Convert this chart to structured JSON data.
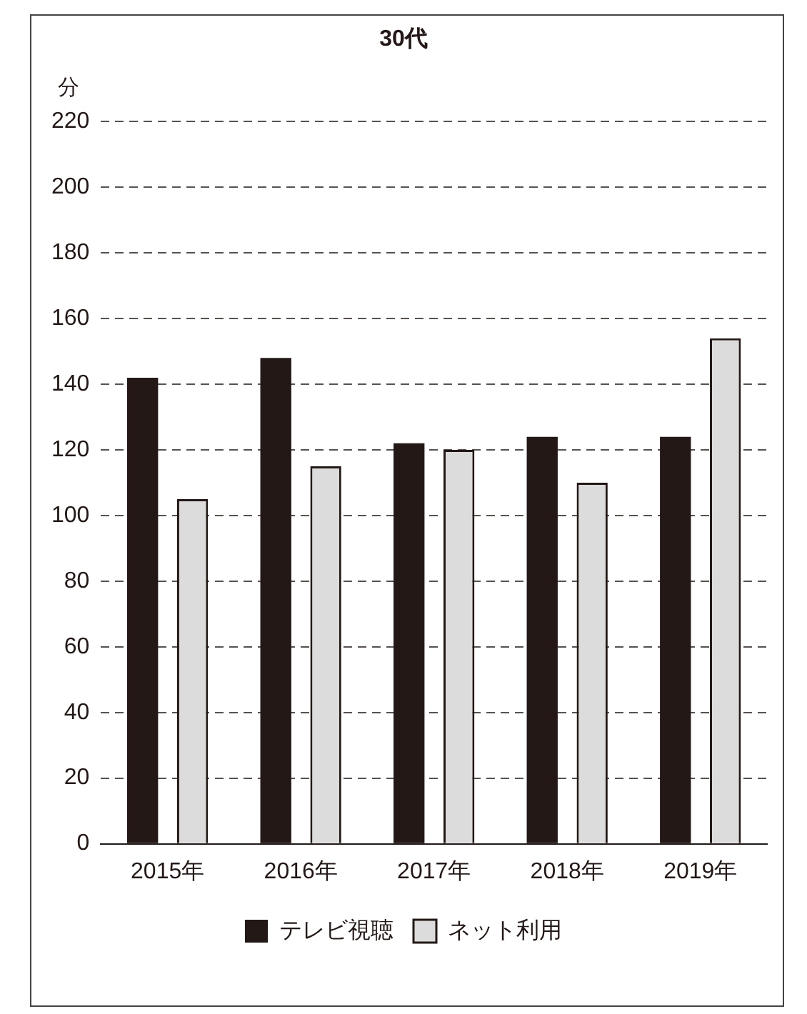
{
  "chart_data": {
    "type": "bar",
    "title": "30代",
    "ylabel": "分",
    "categories": [
      "2015年",
      "2016年",
      "2017年",
      "2018年",
      "2019年"
    ],
    "series": [
      {
        "name": "テレビ視聴",
        "color": "#231815",
        "values": [
          142,
          148,
          122,
          124,
          124
        ]
      },
      {
        "name": "ネット利用",
        "color": "#dcdcdc",
        "values": [
          105,
          115,
          120,
          110,
          154
        ]
      }
    ],
    "ylim": [
      0,
      220
    ],
    "yticks": [
      0,
      20,
      40,
      60,
      80,
      100,
      120,
      140,
      160,
      180,
      200,
      220
    ],
    "grid": "y",
    "legend": "bottom"
  }
}
